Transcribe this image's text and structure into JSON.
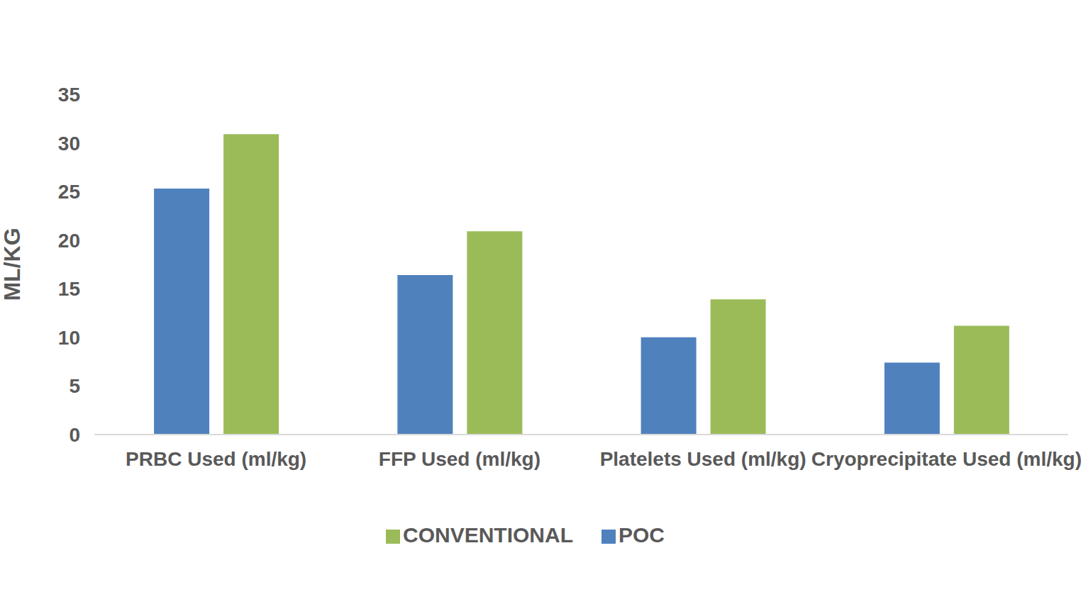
{
  "chart_data": {
    "type": "bar",
    "y_label": "ML/KG",
    "categories": [
      "PRBC Used (ml/kg)",
      "FFP Used (ml/kg)",
      "Platelets Used (ml/kg)",
      "Cryoprecipitate Used (ml/kg)"
    ],
    "series": [
      {
        "name": "POC",
        "color": "#4f81bd",
        "values": [
          25.3,
          16.4,
          10.0,
          7.4
        ]
      },
      {
        "name": "CONVENTIONAL",
        "color": "#9bbb59",
        "values": [
          30.9,
          20.9,
          13.9,
          11.2
        ]
      }
    ],
    "ylim": [
      0,
      35
    ],
    "yticks": [
      0,
      5,
      10,
      15,
      20,
      25,
      30,
      35
    ],
    "grid": false,
    "legend": "bottom"
  }
}
